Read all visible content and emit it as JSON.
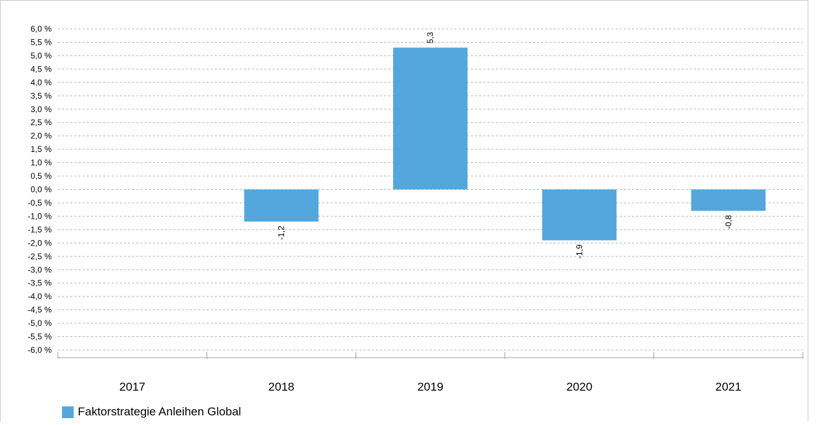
{
  "chart_data": {
    "type": "bar",
    "categories": [
      "2017",
      "2018",
      "2019",
      "2020",
      "2021"
    ],
    "series": [
      {
        "name": "Faktorstrategie Anleihen Global",
        "values": [
          null,
          -1.2,
          5.3,
          -1.9,
          -0.8
        ],
        "data_labels": [
          "",
          "-1,2",
          "5,3",
          "-1,9",
          "-0,8"
        ],
        "color": "#53a7dc"
      }
    ],
    "ylim": [
      -6.0,
      6.0
    ],
    "ytick_step": 0.5,
    "ytick_labels": [
      "6,0 %",
      "5,5 %",
      "5,0 %",
      "4,5 %",
      "4,0 %",
      "3,5 %",
      "3,0 %",
      "2,5 %",
      "2,0 %",
      "1,5 %",
      "1,0 %",
      "0,5 %",
      "0,0 %",
      "-0,5 %",
      "-1,0 %",
      "-1,5 %",
      "-2,0 %",
      "-2,5 %",
      "-3,0 %",
      "-3,5 %",
      "-4,0 %",
      "-4,5 %",
      "-5,0 %",
      "-5,5 %",
      "-6,0 %"
    ],
    "grid": true,
    "grid_style": "dashed horizontal",
    "legend_position": "bottom-left",
    "title": "",
    "xlabel": "",
    "ylabel": ""
  },
  "legend": {
    "label": "Faktorstrategie Anleihen Global",
    "color": "#53a7dc"
  }
}
